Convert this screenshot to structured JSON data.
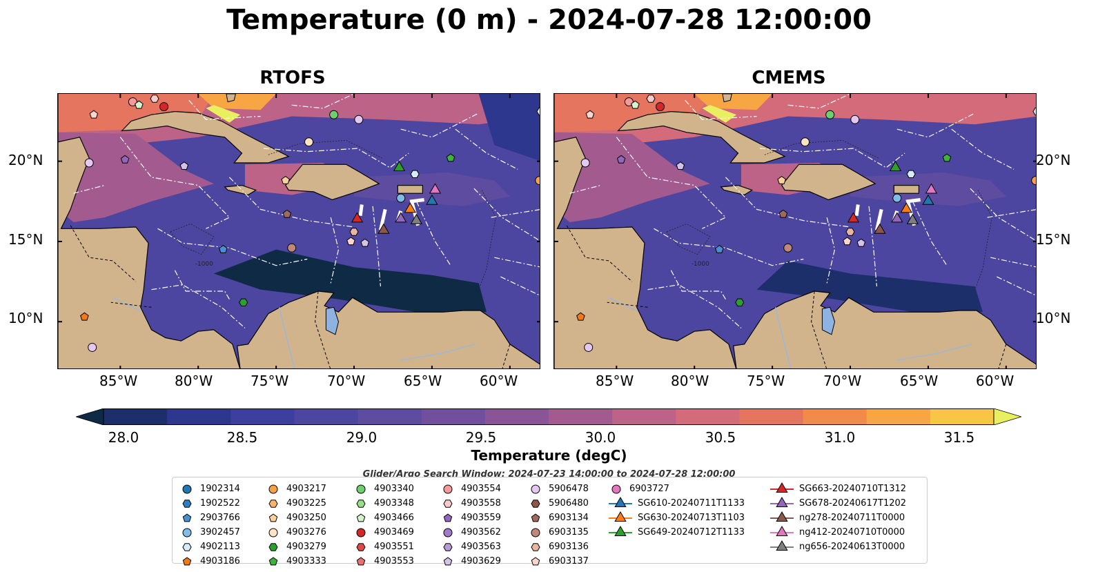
{
  "figure": {
    "title": "Temperature (0 m) - 2024-07-28 12:00:00",
    "panels": [
      {
        "title": "RTOFS",
        "variant": "rtofs"
      },
      {
        "title": "CMEMS",
        "variant": "cmems"
      }
    ],
    "lon_ticks": [
      "85°W",
      "80°W",
      "75°W",
      "70°W",
      "65°W",
      "60°W"
    ],
    "lat_ticks": [
      "20°N",
      "15°N",
      "10°N"
    ],
    "contour_label": "-1000",
    "map_extent": {
      "lon_min": -89,
      "lon_max": -58,
      "lat_min": 7,
      "lat_max": 24.2
    }
  },
  "colorbar": {
    "label": "Temperature (degC)",
    "ticks": [
      "28.0",
      "28.5",
      "29.0",
      "29.5",
      "30.0",
      "30.5",
      "31.0",
      "31.5"
    ],
    "vmin": 28.0,
    "vmax": 31.5,
    "step": 0.25,
    "extend": "both",
    "colors": [
      "#0f2a45",
      "#1c2f6b",
      "#2e378e",
      "#3d3f9e",
      "#4c46a1",
      "#5d4ca0",
      "#724f9c",
      "#8a5596",
      "#a35b8f",
      "#bd6387",
      "#d46b7a",
      "#e6755f",
      "#f28a4a",
      "#f8a543",
      "#f8c544",
      "#e9f060"
    ]
  },
  "search_window": "Glider/Argo Search Window: 2024-07-23 14:00:00 to 2024-07-28 12:00:00",
  "legend": {
    "columns": [
      [
        {
          "label": "1902314",
          "shape": "circle",
          "color": "#1f77b4"
        },
        {
          "label": "1902522",
          "shape": "hexagon",
          "color": "#2f7fc0"
        },
        {
          "label": "2903766",
          "shape": "pentagon",
          "color": "#4a90d0"
        },
        {
          "label": "3902457",
          "shape": "circle",
          "color": "#7fbde8"
        },
        {
          "label": "4902113",
          "shape": "hexagon",
          "color": "#d6ecfa"
        },
        {
          "label": "4903186",
          "shape": "pentagon",
          "color": "#f17b12"
        }
      ],
      [
        {
          "label": "4903217",
          "shape": "circle",
          "color": "#f5a04a"
        },
        {
          "label": "4903225",
          "shape": "hexagon",
          "color": "#f8b46a"
        },
        {
          "label": "4903250",
          "shape": "pentagon",
          "color": "#fbd09a"
        },
        {
          "label": "4903276",
          "shape": "circle",
          "color": "#fde3c6"
        },
        {
          "label": "4903279",
          "shape": "hexagon",
          "color": "#2ca02c"
        },
        {
          "label": "4903333",
          "shape": "pentagon",
          "color": "#3fb13f"
        }
      ],
      [
        {
          "label": "4903340",
          "shape": "circle",
          "color": "#6fcf6f"
        },
        {
          "label": "4903348",
          "shape": "hexagon",
          "color": "#98df8a"
        },
        {
          "label": "4903466",
          "shape": "pentagon",
          "color": "#d4f5cc"
        },
        {
          "label": "4903469",
          "shape": "circle",
          "color": "#d62728"
        },
        {
          "label": "4903551",
          "shape": "hexagon",
          "color": "#e04848"
        },
        {
          "label": "4903553",
          "shape": "pentagon",
          "color": "#ea6f6f"
        }
      ],
      [
        {
          "label": "4903554",
          "shape": "circle",
          "color": "#f49a9a"
        },
        {
          "label": "4903558",
          "shape": "hexagon",
          "color": "#fbcaca"
        },
        {
          "label": "4903559",
          "shape": "pentagon",
          "color": "#9467bd"
        },
        {
          "label": "4903562",
          "shape": "circle",
          "color": "#a27bc8"
        },
        {
          "label": "4903563",
          "shape": "hexagon",
          "color": "#b89ad6"
        },
        {
          "label": "4903629",
          "shape": "pentagon",
          "color": "#d4c2e8"
        }
      ],
      [
        {
          "label": "5906478",
          "shape": "circle",
          "color": "#e5c8f2"
        },
        {
          "label": "5906480",
          "shape": "hexagon",
          "color": "#8c564b"
        },
        {
          "label": "6903134",
          "shape": "pentagon",
          "color": "#9c6a5e"
        },
        {
          "label": "6903135",
          "shape": "circle",
          "color": "#c08878"
        },
        {
          "label": "6903136",
          "shape": "hexagon",
          "color": "#e8b4a4"
        },
        {
          "label": "6903137",
          "shape": "pentagon",
          "color": "#fbd6cc"
        }
      ],
      [
        {
          "label": "6903727",
          "shape": "circle",
          "color": "#e377c2"
        },
        {
          "label": "SG610-20240711T1133",
          "shape": "triangle",
          "color": "#1f77b4"
        },
        {
          "label": "SG630-20240713T1103",
          "shape": "triangle",
          "color": "#ff7f0e"
        },
        {
          "label": "SG649-20240712T1133",
          "shape": "triangle",
          "color": "#2ca02c"
        }
      ],
      [
        {
          "label": "SG663-20240710T1312",
          "shape": "triangle",
          "color": "#d62728"
        },
        {
          "label": "SG678-20240617T1202",
          "shape": "triangle",
          "color": "#9467bd"
        },
        {
          "label": "ng278-20240711T0000",
          "shape": "triangle",
          "color": "#8c564b"
        },
        {
          "label": "ng412-20240710T0000",
          "shape": "triangle",
          "color": "#e377c2"
        },
        {
          "label": "ng656-20240613T0000",
          "shape": "triangle",
          "color": "#7f7f7f"
        }
      ]
    ]
  },
  "observations": [
    {
      "label": "6903137",
      "lon": -86.7,
      "lat": 22.9
    },
    {
      "label": "4903554",
      "lon": -84.2,
      "lat": 23.7
    },
    {
      "label": "4903466",
      "lon": -83.8,
      "lat": 23.5
    },
    {
      "label": "4903558",
      "lon": -82.8,
      "lat": 23.9
    },
    {
      "label": "4903469",
      "lon": -82.2,
      "lat": 23.4
    },
    {
      "label": "4903340",
      "lon": -71.3,
      "lat": 22.9
    },
    {
      "label": "5906478",
      "lon": -69.7,
      "lat": 22.6
    },
    {
      "label": "4903276",
      "lon": -72.9,
      "lat": 21.2
    },
    {
      "label": "4903333",
      "lon": -63.8,
      "lat": 20.2
    },
    {
      "label": "5906478",
      "lon": -87.0,
      "lat": 19.9
    },
    {
      "label": "4903559",
      "lon": -84.7,
      "lat": 20.1
    },
    {
      "label": "4903629",
      "lon": -80.9,
      "lat": 19.7
    },
    {
      "label": "4903250",
      "lon": -74.4,
      "lat": 18.8
    },
    {
      "label": "4902113",
      "lon": -66.1,
      "lat": 19.2
    },
    {
      "label": "3902457",
      "lon": -67.0,
      "lat": 17.7
    },
    {
      "label": "4903217",
      "lon": -58.1,
      "lat": 18.8
    },
    {
      "label": "6903134",
      "lon": -74.3,
      "lat": 16.7
    },
    {
      "label": "6903136",
      "lon": -70.0,
      "lat": 15.6
    },
    {
      "label": "6903137",
      "lon": -70.2,
      "lat": 15.0
    },
    {
      "label": "4903629",
      "lon": -69.3,
      "lat": 14.9
    },
    {
      "label": "6903135",
      "lon": -74.0,
      "lat": 14.6
    },
    {
      "label": "2903766",
      "lon": -78.4,
      "lat": 14.5
    },
    {
      "label": "4903279",
      "lon": -77.1,
      "lat": 11.2
    },
    {
      "label": "4903186",
      "lon": -87.3,
      "lat": 10.3
    },
    {
      "label": "5906478",
      "lon": -86.8,
      "lat": 8.4
    },
    {
      "label": "4902113",
      "lon": -58.0,
      "lat": 23.1
    }
  ],
  "gliders": [
    {
      "label": "SG649-20240712T1133",
      "lon": -67.1,
      "lat": 19.6
    },
    {
      "label": "ng412-20240710T0000",
      "lon": -64.8,
      "lat": 18.2
    },
    {
      "label": "SG610-20240711T1133",
      "lon": -65.0,
      "lat": 17.5
    },
    {
      "label": "SG630-20240713T1103",
      "lon": -66.4,
      "lat": 17.0
    },
    {
      "label": "SG663-20240710T1312",
      "lon": -69.8,
      "lat": 16.4
    },
    {
      "label": "ng278-20240711T0000",
      "lon": -68.1,
      "lat": 15.7
    },
    {
      "label": "SG678-20240617T1202",
      "lon": -67.0,
      "lat": 16.4
    },
    {
      "label": "ng656-20240613T0000",
      "lon": -66.0,
      "lat": 16.3
    }
  ]
}
